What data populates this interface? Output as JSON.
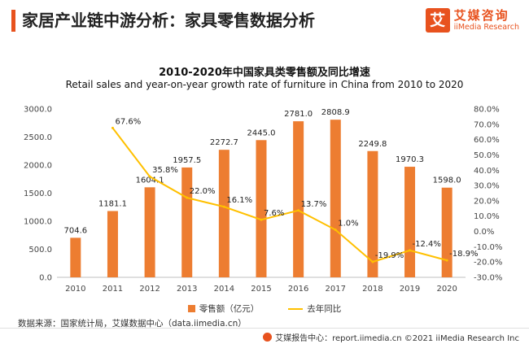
{
  "header": {
    "title": "家居产业链中游分析：家具零售数据分析"
  },
  "logo": {
    "mark": "艾",
    "name": "艾媒咨询",
    "sub": "iiMedia Research"
  },
  "chart_data": {
    "type": "bar+line",
    "title": "2010-2020年中国家具类零售额及同比增速",
    "subtitle": "Retail sales and year-on-year growth rate of furniture in China from 2010 to 2020",
    "categories": [
      "2010",
      "2011",
      "2012",
      "2013",
      "2014",
      "2015",
      "2016",
      "2017",
      "2018",
      "2019",
      "2020"
    ],
    "series": [
      {
        "name": "零售额（亿元）",
        "kind": "bar",
        "axis": "left",
        "color": "#ed7d31",
        "values": [
          704.6,
          1181.1,
          1604.1,
          1957.5,
          2272.7,
          2445.0,
          2781.0,
          2808.9,
          2249.8,
          1970.3,
          1598.0
        ],
        "labels": [
          "704.6",
          "1181.1",
          "1604.1",
          "1957.5",
          "2272.7",
          "2445.0",
          "2781.0",
          "2808.9",
          "2249.8",
          "1970.3",
          "1598.0"
        ]
      },
      {
        "name": "去年同比",
        "kind": "line",
        "axis": "right",
        "color": "#ffc000",
        "values": [
          null,
          67.6,
          35.8,
          22.0,
          16.1,
          7.6,
          13.7,
          1.0,
          -19.9,
          -12.4,
          -18.9
        ],
        "labels": [
          "",
          "67.6%",
          "35.8%",
          "22.0%",
          "16.1%",
          "7.6%",
          "13.7%",
          "1.0%",
          "-19.9%",
          "-12.4%",
          "-18.9%"
        ]
      }
    ],
    "y_left": {
      "min": 0,
      "max": 3000,
      "ticks": [
        "0.0",
        "500.0",
        "1000.0",
        "1500.0",
        "2000.0",
        "2500.0",
        "3000.0"
      ]
    },
    "y_right": {
      "min": -30,
      "max": 80,
      "ticks": [
        "-30.0%",
        "-20.0%",
        "-10.0%",
        "0.0%",
        "10.0%",
        "20.0%",
        "30.0%",
        "40.0%",
        "50.0%",
        "60.0%",
        "70.0%",
        "80.0%"
      ]
    },
    "legend": [
      "零售额（亿元）",
      "去年同比"
    ]
  },
  "source": "数据来源：国家统计局，艾媒数据中心（data.iimedia.cn）",
  "footer": "艾媒报告中心：report.iimedia.cn ©2021  iiMedia Research  Inc"
}
